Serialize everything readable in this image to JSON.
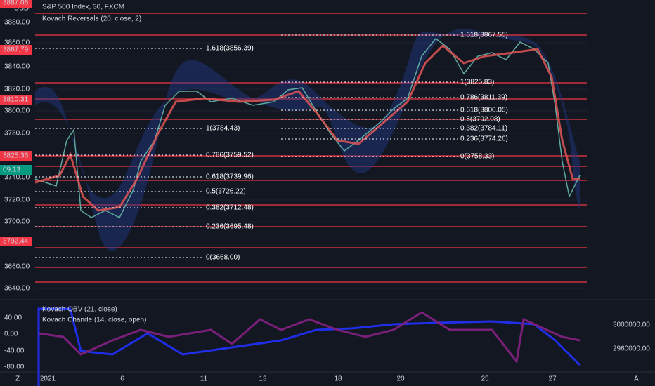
{
  "header": {
    "title": "S&P 500 Index, 30, FXCM",
    "indicator": "Kovach Reversals (20, close, 2)",
    "currency": "USD"
  },
  "price_axis": [
    "3880.00",
    "3860.00",
    "3840.00",
    "3820.00",
    "3800.00",
    "3780.00",
    "3740.00",
    "3720.00",
    "3700.00",
    "3660.00",
    "3640.00"
  ],
  "price_tags": [
    "3887.06",
    "3867.79",
    "3810.31",
    "3825.36",
    "09:13",
    "3792.44"
  ],
  "fib_left": [
    "1.618(3856.39)",
    "1(3784.43)",
    "0.786(3759.52)",
    "0.618(3739.96)",
    "0.5(3726.22)",
    "0.382(3712.48)",
    "0.236(3695.48)",
    "0(3668.00)"
  ],
  "fib_right": [
    "1.618(3867.55)",
    "1(3825.83)",
    "0.786(3811.39)",
    "0.618(3800.05)",
    "0.5(3792.08)",
    "0.382(3784.11)",
    "0.236(3774.26)",
    "0(3758.33)"
  ],
  "lower_pane": {
    "obv": "Kovach OBV (21, close)",
    "chande": "Kovach Chande (14, close, open)",
    "left_axis": [
      "40.00",
      "0.00",
      "-40.00",
      "-80.00"
    ],
    "right_axis": [
      "3000000.00",
      "2960000.00"
    ]
  },
  "time_axis": [
    "2021",
    "6",
    "11",
    "13",
    "18",
    "20",
    "25",
    "27"
  ],
  "corner": {
    "left": "Z",
    "right": "A"
  }
}
